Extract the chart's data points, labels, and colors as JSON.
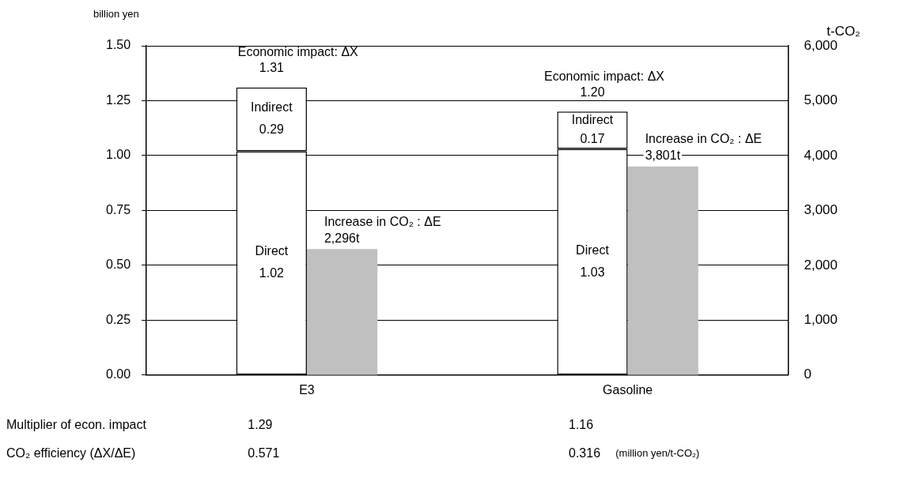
{
  "chart_data": {
    "type": "bar",
    "ylabel": "billion yen",
    "y2label": "t-CO₂",
    "categories": [
      "E3",
      "Gasoline"
    ],
    "stacked": true,
    "series": [
      {
        "name": "Direct",
        "color": "#ffffff",
        "values": [
          1.02,
          1.03
        ],
        "value_labels": [
          "1.02",
          "1.03"
        ]
      },
      {
        "name": "Indirect",
        "color": "#ffffff",
        "values": [
          0.29,
          0.17
        ],
        "value_labels": [
          "0.29",
          "0.17"
        ]
      },
      {
        "name": "Increase in CO₂ : ΔE",
        "color": "#c0c0c0",
        "axis": "y2",
        "values": [
          2296,
          3801
        ],
        "value_labels": [
          "2,296t",
          "3,801t"
        ]
      }
    ],
    "totals": [
      "1.31",
      "1.20"
    ],
    "ylim": [
      0,
      1.5
    ],
    "yticks": [
      {
        "value": 0,
        "label": "0.00"
      },
      {
        "value": 0.25,
        "label": "0.25"
      },
      {
        "value": 0.5,
        "label": "0.50"
      },
      {
        "value": 0.75,
        "label": "0.75"
      },
      {
        "value": 1,
        "label": "1.00"
      },
      {
        "value": 1.25,
        "label": "1.25"
      },
      {
        "value": 1.5,
        "label": "1.50"
      }
    ],
    "y2lim": [
      0,
      6000
    ],
    "y2ticks": [
      0,
      {
        "value": 1000,
        "label": "1,000"
      },
      {
        "value": 2000,
        "label": "2,000"
      },
      {
        "value": 3000,
        "label": "3,000"
      },
      {
        "value": 4000,
        "label": "4,000"
      },
      {
        "value": 5000,
        "label": "5,000"
      },
      {
        "value": 6000,
        "label": "6,000"
      }
    ],
    "grid": "y",
    "legend": false,
    "annotations": [
      "Economic impact: ΔX",
      "Economic impact: ΔX",
      "Multiplier of econ. impact",
      "1.29",
      "1.16",
      "CO₂ efficiency (ΔX/ΔE)",
      "0.571",
      "0.316",
      "(million yen/t-CO₂)"
    ]
  }
}
